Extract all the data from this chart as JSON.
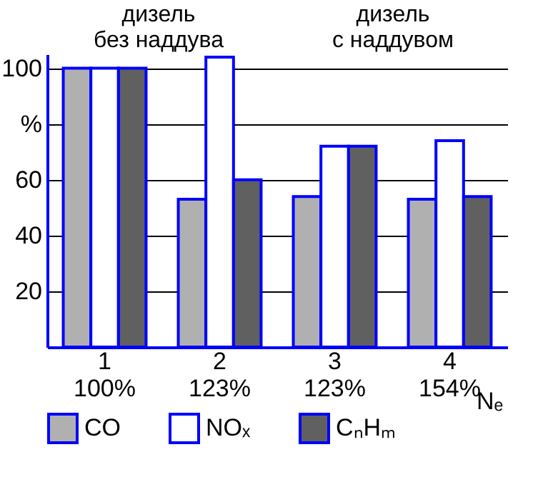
{
  "chart_data": {
    "type": "bar",
    "categories": [
      "1\n100%",
      "2\n123%",
      "3\n123%",
      "4\n154%"
    ],
    "xlabel": "Nₑ",
    "annotations": [
      "дизель\nбез наддува",
      "дизель\nс наддувом"
    ],
    "series": [
      {
        "name": "CO",
        "color": "#b0b0b0",
        "values": [
          100,
          53,
          54,
          53
        ]
      },
      {
        "name": "NOₓ",
        "color": "#ffffff",
        "values": [
          100,
          104,
          72,
          74
        ]
      },
      {
        "name": "CₙHₘ",
        "color": "#606060",
        "values": [
          100,
          60,
          72,
          54
        ]
      }
    ],
    "ylim": [
      0,
      105
    ],
    "yticks": [
      20,
      40,
      60,
      {
        "value": 80,
        "label": "%"
      },
      100
    ],
    "grid": "y",
    "legend": "bottom"
  }
}
